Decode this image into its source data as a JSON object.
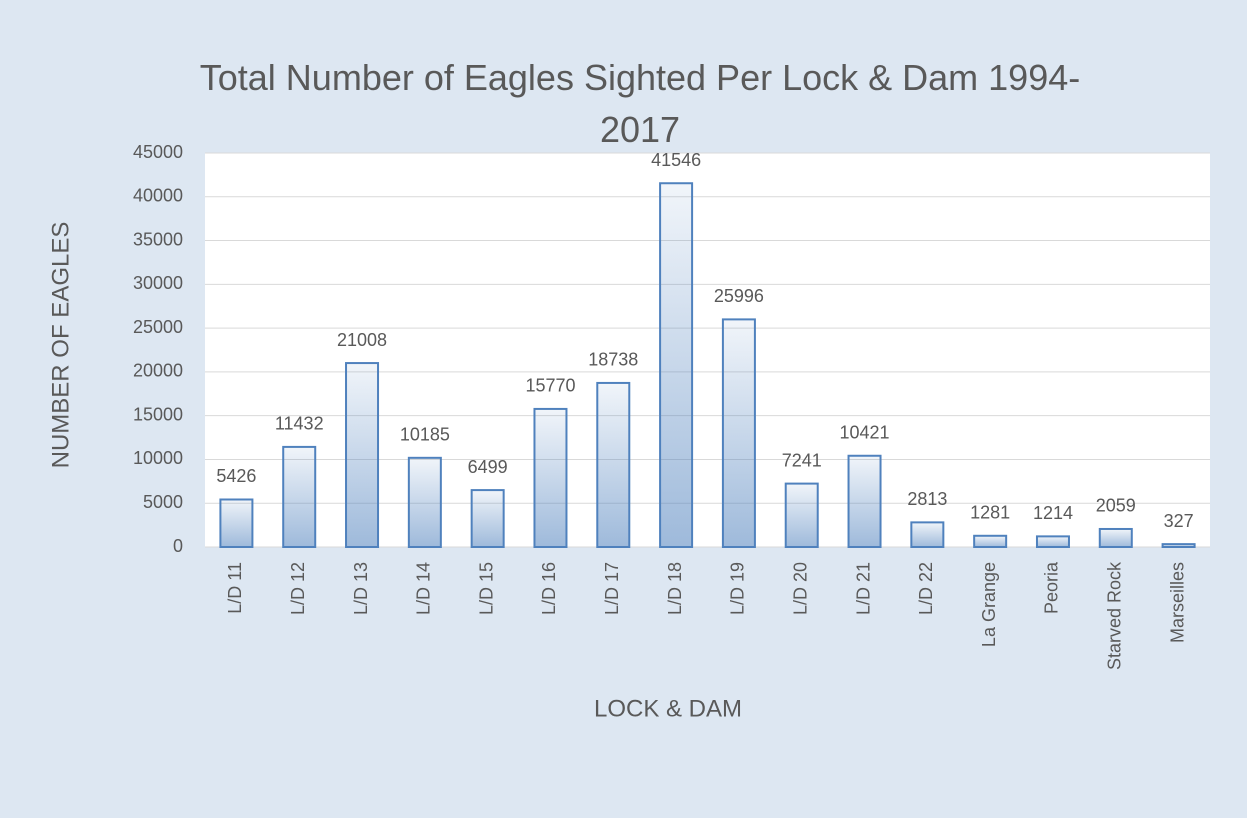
{
  "chart_data": {
    "type": "bar",
    "title": "Total Number of Eagles Sighted Per Lock & Dam 1994-2017",
    "x_label": "LOCK & DAM",
    "y_label": "NUMBER OF EAGLES",
    "categories": [
      "L/D 11",
      "L/D 12",
      "L/D 13",
      "L/D 14",
      "L/D 15",
      "L/D 16",
      "L/D 17",
      "L/D 18",
      "L/D 19",
      "L/D 20",
      "L/D 21",
      "L/D 22",
      "La Grange",
      "Peoria",
      "Starved Rock",
      "Marseilles"
    ],
    "values": [
      5426,
      11432,
      21008,
      10185,
      6499,
      15770,
      18738,
      41546,
      25996,
      7241,
      10421,
      2813,
      1281,
      1214,
      2059,
      327
    ],
    "color": "#4f81bd",
    "ylim": [
      0,
      45000
    ],
    "yticks": [
      0,
      5000,
      10000,
      15000,
      20000,
      25000,
      30000,
      35000,
      40000,
      45000
    ],
    "grid": true
  }
}
